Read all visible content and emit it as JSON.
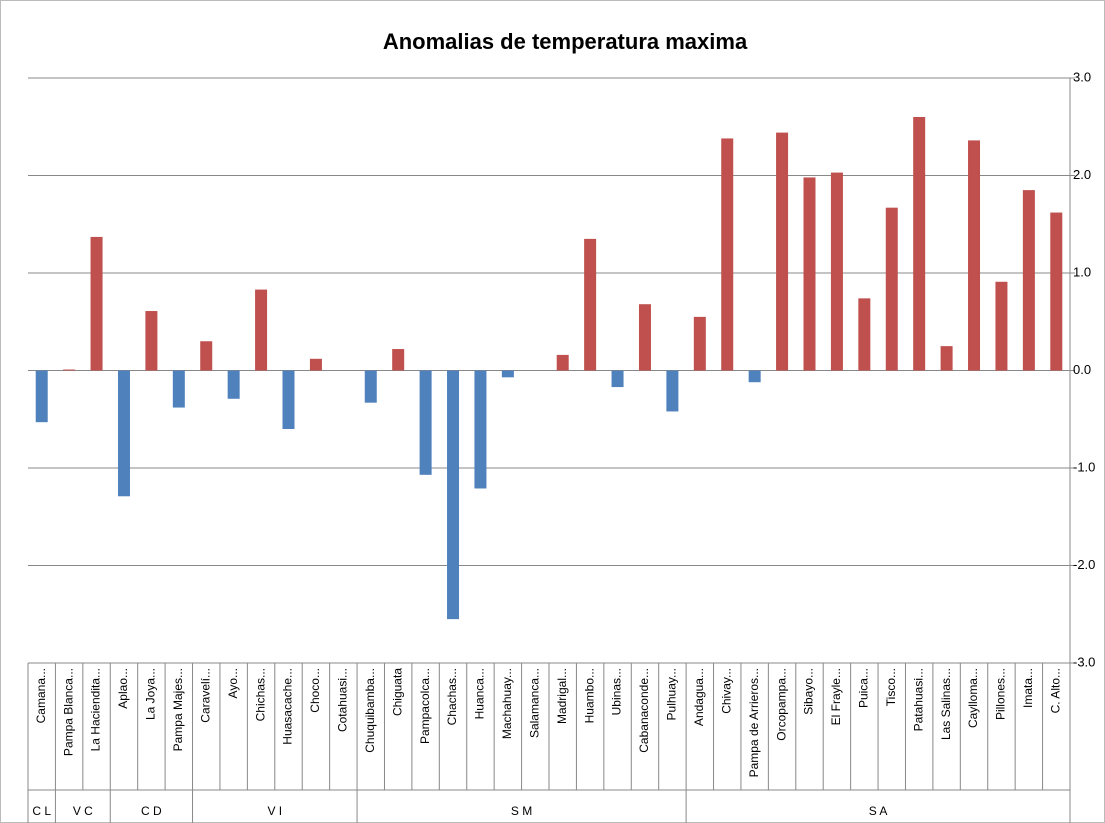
{
  "chart_data": {
    "type": "bar",
    "title": "Anomalias de temperatura maxima",
    "colors": {
      "positive": "#c0504d",
      "negative": "#4f81bd"
    },
    "ylim": [
      -3,
      3
    ],
    "yticks": [
      {
        "value": 3,
        "label": "3.0"
      },
      {
        "value": 2,
        "label": "2.0"
      },
      {
        "value": 1,
        "label": "1.0"
      },
      {
        "value": 0,
        "label": "0.0"
      },
      {
        "value": -1,
        "label": "-1.0"
      },
      {
        "value": -2,
        "label": "-2.0"
      },
      {
        "value": -3,
        "label": "-3.0"
      }
    ],
    "grid": true,
    "groups": [
      {
        "label": "C L",
        "categories": [
          "Camana..."
        ],
        "values": [
          -0.53
        ]
      },
      {
        "label": "V C",
        "categories": [
          "Pampa Blanca...",
          "La Haciendita..."
        ],
        "values": [
          0.01,
          1.37
        ]
      },
      {
        "label": "C D",
        "categories": [
          "Aplao...",
          "La Joya...",
          "Pampa Majes..."
        ],
        "values": [
          -1.29,
          0.61,
          -0.38
        ]
      },
      {
        "label": "V I",
        "categories": [
          "Caravelí...",
          "Ayo...",
          "Chichas...",
          "Huasacache...",
          "Choco...",
          "Cotahuasi..."
        ],
        "values": [
          0.3,
          -0.29,
          0.83,
          -0.6,
          0.12,
          null
        ]
      },
      {
        "label": "S M",
        "categories": [
          "Chuquibamba...",
          "Chiguata",
          "Pampacolca...",
          "Chachas...",
          "Huanca...",
          "Machahuay...",
          "Salamanca...",
          "Madrigal...",
          "Huambo...",
          "Ubinas...",
          "Cabanaconde...",
          "Pulhuay..."
        ],
        "values": [
          -0.33,
          0.22,
          -1.07,
          -2.55,
          -1.21,
          -0.07,
          null,
          0.16,
          1.35,
          -0.17,
          0.68,
          -0.42
        ]
      },
      {
        "label": "S A",
        "categories": [
          "Andagua...",
          "Chivay...",
          "Pampa de Arrieros...",
          "Orcopampa...",
          "Sibayo...",
          "El Frayle...",
          "Puica...",
          "Tisco...",
          "Patahuasi...",
          "Las Salinas...",
          "Caylloma...",
          "Pillones...",
          "Imata...",
          "C. Alto..."
        ],
        "values": [
          0.55,
          2.38,
          -0.12,
          2.44,
          1.98,
          2.03,
          0.74,
          1.67,
          2.6,
          0.25,
          2.36,
          0.91,
          1.85,
          1.62
        ]
      }
    ]
  }
}
